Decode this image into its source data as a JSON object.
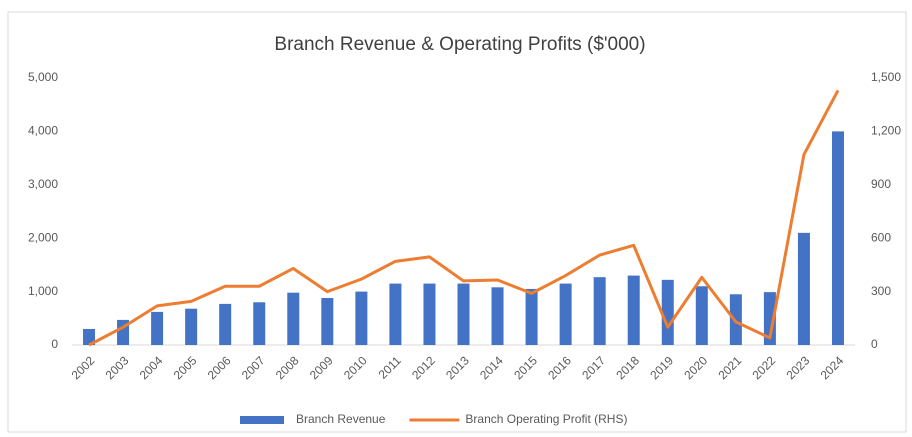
{
  "chart_data": {
    "type": "bar",
    "title": "Branch Revenue & Operating Profits ($'000)",
    "categories": [
      "2002",
      "2003",
      "2004",
      "2005",
      "2006",
      "2007",
      "2008",
      "2009",
      "2010",
      "2011",
      "2012",
      "2013",
      "2014",
      "2015",
      "2016",
      "2017",
      "2018",
      "2019",
      "2020",
      "2021",
      "2022",
      "2023",
      "2024"
    ],
    "series": [
      {
        "name": "Branch Revenue",
        "type": "bar",
        "color": "#4472c4",
        "values": [
          300,
          470,
          620,
          680,
          770,
          800,
          980,
          880,
          1000,
          1150,
          1150,
          1150,
          1080,
          1050,
          1150,
          1270,
          1300,
          1220,
          1100,
          950,
          990,
          2100,
          4000
        ]
      },
      {
        "name": "Branch Operating Profit (RHS)",
        "type": "line",
        "axis": "y2",
        "color": "#ed7d31",
        "values": [
          0,
          100,
          220,
          245,
          330,
          330,
          430,
          300,
          370,
          470,
          495,
          360,
          365,
          290,
          390,
          505,
          560,
          100,
          380,
          130,
          40,
          1070,
          1430
        ]
      }
    ],
    "ylim": [
      0,
      5000
    ],
    "yticks": [
      0,
      {
        "value": 1000,
        "label": "1,000"
      },
      {
        "value": 2000,
        "label": "2,000"
      },
      {
        "value": 3000,
        "label": "3,000"
      },
      {
        "value": 4000,
        "label": "4,000"
      },
      {
        "value": 5000,
        "label": "5,000"
      }
    ],
    "y2lim": [
      0,
      1500
    ],
    "y2ticks": [
      0,
      300,
      600,
      900,
      {
        "value": 1200,
        "label": "1,200"
      },
      {
        "value": 1500,
        "label": "1,500"
      }
    ],
    "grid": false,
    "legend": "bottom"
  }
}
